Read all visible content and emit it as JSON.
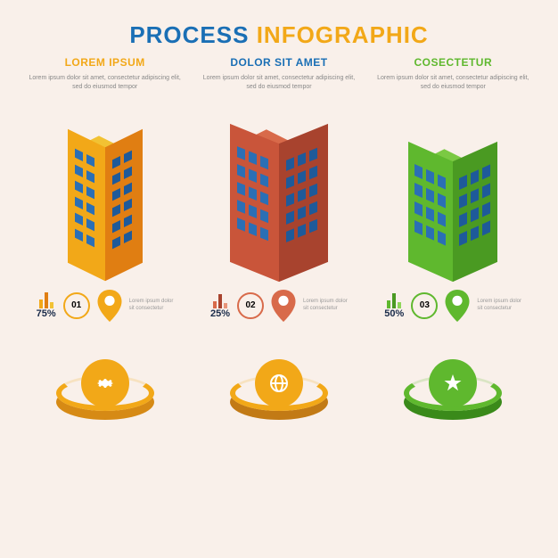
{
  "title": "PROCESS INFOGRAPHIC",
  "title_colors": [
    "#1a6fb5",
    "#f2a818"
  ],
  "background_color": "#f9f0ea",
  "columns": [
    {
      "heading": "LOREM IPSUM",
      "heading_color": "#f2a818",
      "desc": "Lorem ipsum dolor sit amet, consectetur adipiscing elit, sed do eiusmod tempor",
      "building": {
        "light": "#f2a818",
        "dark": "#e07e12",
        "top": "#f2c233",
        "window": "#2b6fb5"
      },
      "pin_color": "#f2a818",
      "number": "01",
      "percent": "75%",
      "bars": [
        10,
        18,
        7
      ],
      "bar_colors": [
        "#f2a818",
        "#e07e12",
        "#f2c233"
      ],
      "medallion": {
        "base": "#d68a15",
        "top": "#f9f0ea",
        "ring": "#f2a818",
        "inner": "#f2a818",
        "icon": "gear"
      }
    },
    {
      "heading": "DOLOR SIT AMET",
      "heading_color": "#1a6fb5",
      "desc": "Lorem ipsum dolor sit amet, consectetur adipiscing elit, sed do eiusmod tempor",
      "building": {
        "light": "#c9553a",
        "dark": "#a8432e",
        "top": "#d86a4a",
        "window": "#2b6fb5"
      },
      "pin_color": "#d86a4a",
      "number": "02",
      "percent": "25%",
      "bars": [
        8,
        16,
        6
      ],
      "bar_colors": [
        "#d86a4a",
        "#a8432e",
        "#e8957a"
      ],
      "medallion": {
        "base": "#c27a15",
        "top": "#f9f0ea",
        "ring": "#f2a818",
        "inner": "#f2a818",
        "icon": "globe"
      }
    },
    {
      "heading": "COSECTETUR",
      "heading_color": "#5fb82e",
      "desc": "Lorem ipsum dolor sit amet, consectetur adipiscing elit, sed do eiusmod tempor",
      "building": {
        "light": "#5fb82e",
        "dark": "#4a9a22",
        "top": "#7bc943",
        "window": "#2b6fb5"
      },
      "pin_color": "#5fb82e",
      "number": "03",
      "percent": "50%",
      "bars": [
        9,
        17,
        7
      ],
      "bar_colors": [
        "#5fb82e",
        "#4a9a22",
        "#8fd65a"
      ],
      "medallion": {
        "base": "#3a8a1a",
        "top": "#f9f0ea",
        "ring": "#5fb82e",
        "inner": "#5fb82e",
        "icon": "star"
      }
    }
  ],
  "stat_desc": "Lorem ipsum dolor sit consectetur"
}
